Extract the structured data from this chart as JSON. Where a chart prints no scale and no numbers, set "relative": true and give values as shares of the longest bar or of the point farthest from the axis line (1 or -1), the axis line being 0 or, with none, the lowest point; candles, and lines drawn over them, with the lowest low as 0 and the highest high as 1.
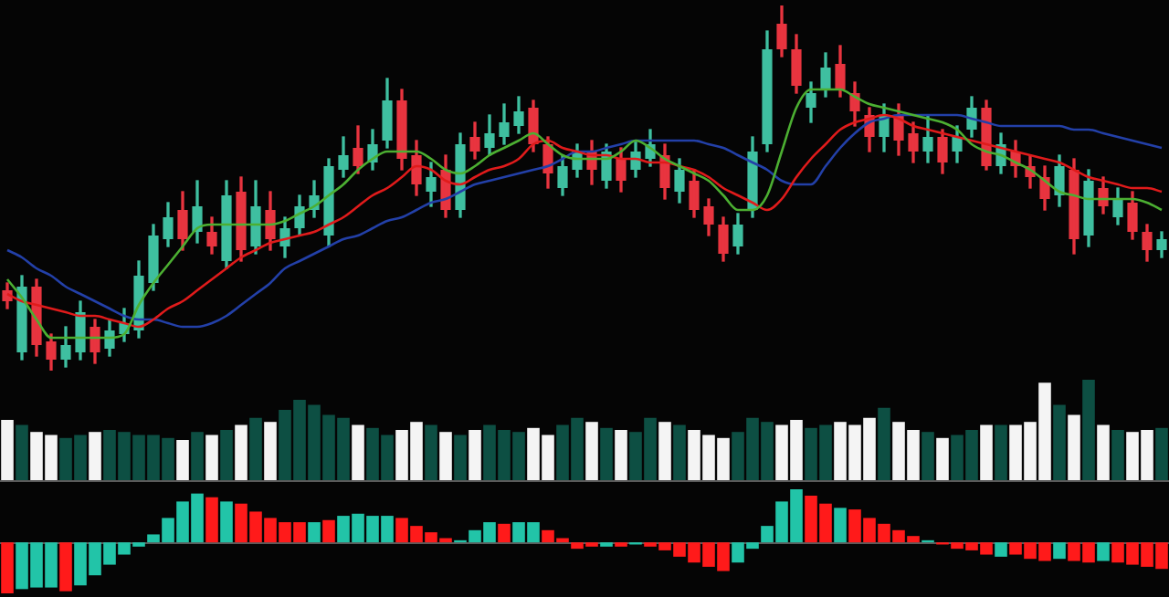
{
  "chart_data": [
    {
      "type": "candlestick",
      "relative": true,
      "marker": "none",
      "categories": [
        null,
        null,
        null,
        null,
        null,
        null,
        null,
        null,
        null,
        null,
        null,
        null,
        null,
        null,
        null,
        null,
        null,
        null,
        null,
        null,
        null,
        null,
        null,
        null,
        null,
        null,
        null,
        null,
        null,
        null,
        null,
        null,
        null,
        null,
        null,
        null,
        null,
        null,
        null,
        null,
        null,
        null,
        null,
        null,
        null,
        null,
        null,
        null,
        null,
        null,
        null,
        null,
        null,
        null,
        null,
        null,
        null,
        null,
        null,
        null,
        null,
        null,
        null,
        null,
        null,
        null,
        null,
        null,
        null,
        null,
        null,
        null,
        null,
        null,
        null,
        null,
        null,
        null,
        null,
        null
      ],
      "ohlc": [
        [
          0.22,
          0.24,
          0.17,
          0.19
        ],
        [
          0.05,
          0.26,
          0.03,
          0.23
        ],
        [
          0.23,
          0.25,
          0.04,
          0.07
        ],
        [
          0.08,
          0.1,
          0.0,
          0.03
        ],
        [
          0.03,
          0.12,
          0.01,
          0.07
        ],
        [
          0.05,
          0.19,
          0.03,
          0.16
        ],
        [
          0.12,
          0.14,
          0.02,
          0.05
        ],
        [
          0.06,
          0.14,
          0.04,
          0.11
        ],
        [
          0.1,
          0.17,
          0.08,
          0.13
        ],
        [
          0.11,
          0.3,
          0.09,
          0.26
        ],
        [
          0.24,
          0.4,
          0.22,
          0.37
        ],
        [
          0.36,
          0.46,
          0.34,
          0.42
        ],
        [
          0.44,
          0.49,
          0.33,
          0.36
        ],
        [
          0.38,
          0.52,
          0.35,
          0.45
        ],
        [
          0.38,
          0.42,
          0.32,
          0.34
        ],
        [
          0.3,
          0.52,
          0.28,
          0.48
        ],
        [
          0.49,
          0.53,
          0.3,
          0.33
        ],
        [
          0.34,
          0.52,
          0.32,
          0.45
        ],
        [
          0.44,
          0.49,
          0.33,
          0.36
        ],
        [
          0.34,
          0.42,
          0.31,
          0.39
        ],
        [
          0.39,
          0.48,
          0.37,
          0.45
        ],
        [
          0.44,
          0.52,
          0.42,
          0.48
        ],
        [
          0.37,
          0.58,
          0.34,
          0.56
        ],
        [
          0.55,
          0.64,
          0.53,
          0.59
        ],
        [
          0.61,
          0.67,
          0.54,
          0.56
        ],
        [
          0.57,
          0.66,
          0.55,
          0.62
        ],
        [
          0.63,
          0.8,
          0.61,
          0.74
        ],
        [
          0.74,
          0.77,
          0.55,
          0.58
        ],
        [
          0.59,
          0.63,
          0.48,
          0.51
        ],
        [
          0.49,
          0.57,
          0.45,
          0.53
        ],
        [
          0.55,
          0.59,
          0.42,
          0.44
        ],
        [
          0.44,
          0.65,
          0.42,
          0.62
        ],
        [
          0.64,
          0.68,
          0.58,
          0.6
        ],
        [
          0.61,
          0.7,
          0.59,
          0.65
        ],
        [
          0.64,
          0.73,
          0.62,
          0.68
        ],
        [
          0.67,
          0.75,
          0.65,
          0.71
        ],
        [
          0.72,
          0.74,
          0.6,
          0.62
        ],
        [
          0.62,
          0.64,
          0.5,
          0.54
        ],
        [
          0.5,
          0.59,
          0.48,
          0.56
        ],
        [
          0.55,
          0.62,
          0.53,
          0.6
        ],
        [
          0.6,
          0.63,
          0.51,
          0.55
        ],
        [
          0.52,
          0.62,
          0.5,
          0.6
        ],
        [
          0.58,
          0.61,
          0.49,
          0.52
        ],
        [
          0.55,
          0.63,
          0.53,
          0.6
        ],
        [
          0.58,
          0.66,
          0.56,
          0.62
        ],
        [
          0.59,
          0.62,
          0.47,
          0.5
        ],
        [
          0.49,
          0.58,
          0.46,
          0.55
        ],
        [
          0.52,
          0.55,
          0.42,
          0.44
        ],
        [
          0.45,
          0.47,
          0.37,
          0.4
        ],
        [
          0.4,
          0.42,
          0.3,
          0.32
        ],
        [
          0.34,
          0.43,
          0.32,
          0.4
        ],
        [
          0.44,
          0.64,
          0.42,
          0.6
        ],
        [
          0.62,
          0.93,
          0.6,
          0.88
        ],
        [
          0.95,
          1.0,
          0.86,
          0.88
        ],
        [
          0.88,
          0.92,
          0.76,
          0.78
        ],
        [
          0.72,
          0.79,
          0.68,
          0.76
        ],
        [
          0.77,
          0.87,
          0.75,
          0.83
        ],
        [
          0.84,
          0.89,
          0.75,
          0.77
        ],
        [
          0.76,
          0.79,
          0.67,
          0.71
        ],
        [
          0.7,
          0.72,
          0.6,
          0.64
        ],
        [
          0.64,
          0.73,
          0.6,
          0.7
        ],
        [
          0.7,
          0.73,
          0.59,
          0.63
        ],
        [
          0.65,
          0.68,
          0.57,
          0.6
        ],
        [
          0.6,
          0.7,
          0.57,
          0.64
        ],
        [
          0.64,
          0.66,
          0.54,
          0.57
        ],
        [
          0.6,
          0.67,
          0.57,
          0.64
        ],
        [
          0.66,
          0.75,
          0.64,
          0.72
        ],
        [
          0.72,
          0.74,
          0.55,
          0.56
        ],
        [
          0.56,
          0.65,
          0.54,
          0.62
        ],
        [
          0.6,
          0.63,
          0.53,
          0.56
        ],
        [
          0.56,
          0.59,
          0.5,
          0.53
        ],
        [
          0.53,
          0.56,
          0.44,
          0.47
        ],
        [
          0.48,
          0.59,
          0.45,
          0.56
        ],
        [
          0.55,
          0.58,
          0.32,
          0.36
        ],
        [
          0.37,
          0.55,
          0.34,
          0.52
        ],
        [
          0.5,
          0.53,
          0.43,
          0.45
        ],
        [
          0.42,
          0.5,
          0.4,
          0.47
        ],
        [
          0.46,
          0.49,
          0.36,
          0.38
        ],
        [
          0.38,
          0.4,
          0.3,
          0.33
        ],
        [
          0.33,
          0.38,
          0.31,
          0.36
        ]
      ],
      "colors": [
        "#e8343f",
        "#3fbfa0",
        "#e8343f",
        "#e8343f",
        "#3fbfa0",
        "#3fbfa0",
        "#e8343f",
        "#3fbfa0",
        "#3fbfa0",
        "#3fbfa0",
        "#3fbfa0",
        "#3fbfa0",
        "#e8343f",
        "#3fbfa0",
        "#e8343f",
        "#3fbfa0",
        "#e8343f",
        "#3fbfa0",
        "#e8343f",
        "#3fbfa0",
        "#3fbfa0",
        "#3fbfa0",
        "#3fbfa0",
        "#3fbfa0",
        "#e8343f",
        "#3fbfa0",
        "#3fbfa0",
        "#e8343f",
        "#e8343f",
        "#3fbfa0",
        "#e8343f",
        "#3fbfa0",
        "#e8343f",
        "#3fbfa0",
        "#3fbfa0",
        "#3fbfa0",
        "#e8343f",
        "#e8343f",
        "#3fbfa0",
        "#3fbfa0",
        "#e8343f",
        "#3fbfa0",
        "#e8343f",
        "#3fbfa0",
        "#3fbfa0",
        "#e8343f",
        "#3fbfa0",
        "#e8343f",
        "#e8343f",
        "#e8343f",
        "#3fbfa0",
        "#3fbfa0",
        "#3fbfa0",
        "#e8343f",
        "#e8343f",
        "#3fbfa0",
        "#3fbfa0",
        "#e8343f",
        "#e8343f",
        "#e8343f",
        "#3fbfa0",
        "#e8343f",
        "#e8343f",
        "#3fbfa0",
        "#e8343f",
        "#3fbfa0",
        "#3fbfa0",
        "#e8343f",
        "#3fbfa0",
        "#e8343f",
        "#e8343f",
        "#e8343f",
        "#3fbfa0",
        "#e8343f",
        "#3fbfa0",
        "#e8343f",
        "#3fbfa0",
        "#e8343f",
        "#e8343f",
        "#3fbfa0"
      ],
      "series": [
        {
          "type": "line",
          "color": "#4caf32",
          "values": [
            0.25,
            0.2,
            0.14,
            0.09,
            0.09,
            0.09,
            0.09,
            0.09,
            0.1,
            0.18,
            0.24,
            0.29,
            0.34,
            0.39,
            0.4,
            0.4,
            0.4,
            0.4,
            0.4,
            0.41,
            0.43,
            0.45,
            0.48,
            0.51,
            0.55,
            0.58,
            0.6,
            0.6,
            0.6,
            0.58,
            0.55,
            0.54,
            0.56,
            0.59,
            0.61,
            0.63,
            0.65,
            0.62,
            0.59,
            0.58,
            0.58,
            0.58,
            0.6,
            0.63,
            0.61,
            0.58,
            0.56,
            0.54,
            0.52,
            0.48,
            0.44,
            0.44,
            0.48,
            0.6,
            0.72,
            0.77,
            0.77,
            0.77,
            0.75,
            0.73,
            0.72,
            0.71,
            0.7,
            0.69,
            0.68,
            0.66,
            0.62,
            0.6,
            0.59,
            0.57,
            0.55,
            0.52,
            0.49,
            0.48,
            0.47,
            0.47,
            0.47,
            0.47,
            0.46,
            0.44
          ]
        },
        {
          "type": "line",
          "color": "#e01b1b",
          "values": [
            0.21,
            0.19,
            0.18,
            0.17,
            0.16,
            0.15,
            0.15,
            0.14,
            0.13,
            0.12,
            0.14,
            0.17,
            0.19,
            0.22,
            0.25,
            0.28,
            0.31,
            0.33,
            0.35,
            0.36,
            0.37,
            0.38,
            0.4,
            0.42,
            0.45,
            0.48,
            0.5,
            0.53,
            0.56,
            0.55,
            0.52,
            0.51,
            0.53,
            0.55,
            0.56,
            0.58,
            0.62,
            0.63,
            0.61,
            0.6,
            0.59,
            0.59,
            0.58,
            0.58,
            0.57,
            0.57,
            0.56,
            0.55,
            0.53,
            0.5,
            0.48,
            0.46,
            0.44,
            0.47,
            0.53,
            0.58,
            0.62,
            0.66,
            0.68,
            0.69,
            0.7,
            0.69,
            0.67,
            0.66,
            0.65,
            0.64,
            0.63,
            0.62,
            0.61,
            0.6,
            0.59,
            0.58,
            0.57,
            0.55,
            0.53,
            0.52,
            0.51,
            0.5,
            0.5,
            0.49
          ]
        },
        {
          "type": "line",
          "color": "#2340a8",
          "values": [
            0.33,
            0.31,
            0.28,
            0.26,
            0.23,
            0.21,
            0.19,
            0.17,
            0.15,
            0.14,
            0.14,
            0.13,
            0.12,
            0.12,
            0.13,
            0.15,
            0.18,
            0.21,
            0.24,
            0.28,
            0.3,
            0.32,
            0.34,
            0.36,
            0.37,
            0.39,
            0.41,
            0.42,
            0.44,
            0.46,
            0.47,
            0.49,
            0.51,
            0.52,
            0.53,
            0.54,
            0.55,
            0.56,
            0.58,
            0.6,
            0.6,
            0.61,
            0.62,
            0.63,
            0.63,
            0.63,
            0.63,
            0.63,
            0.62,
            0.61,
            0.59,
            0.57,
            0.55,
            0.52,
            0.51,
            0.51,
            0.56,
            0.61,
            0.65,
            0.68,
            0.69,
            0.7,
            0.7,
            0.7,
            0.7,
            0.7,
            0.69,
            0.68,
            0.67,
            0.67,
            0.67,
            0.67,
            0.67,
            0.66,
            0.66,
            0.65,
            0.64,
            0.63,
            0.62,
            0.61
          ]
        }
      ]
    },
    {
      "type": "bar",
      "relative": true,
      "categories": [
        null,
        null,
        null,
        null,
        null,
        null,
        null,
        null,
        null,
        null,
        null,
        null,
        null,
        null,
        null,
        null,
        null,
        null,
        null,
        null,
        null,
        null,
        null,
        null,
        null,
        null,
        null,
        null,
        null,
        null,
        null,
        null,
        null,
        null,
        null,
        null,
        null,
        null,
        null,
        null,
        null,
        null,
        null,
        null,
        null,
        null,
        null,
        null,
        null,
        null,
        null,
        null,
        null,
        null,
        null,
        null,
        null,
        null,
        null,
        null,
        null,
        null,
        null,
        null,
        null,
        null,
        null,
        null,
        null,
        null,
        null,
        null,
        null,
        null,
        null,
        null,
        null,
        null,
        null,
        null
      ],
      "values": [
        0.6,
        0.55,
        0.48,
        0.45,
        0.42,
        0.45,
        0.48,
        0.5,
        0.48,
        0.45,
        0.45,
        0.42,
        0.4,
        0.48,
        0.45,
        0.5,
        0.55,
        0.62,
        0.58,
        0.7,
        0.8,
        0.75,
        0.65,
        0.62,
        0.55,
        0.52,
        0.45,
        0.5,
        0.58,
        0.55,
        0.48,
        0.45,
        0.5,
        0.55,
        0.5,
        0.48,
        0.52,
        0.45,
        0.55,
        0.62,
        0.58,
        0.52,
        0.5,
        0.48,
        0.62,
        0.58,
        0.55,
        0.5,
        0.45,
        0.42,
        0.48,
        0.62,
        0.58,
        0.55,
        0.6,
        0.52,
        0.55,
        0.58,
        0.55,
        0.62,
        0.72,
        0.58,
        0.5,
        0.48,
        0.42,
        0.45,
        0.5,
        0.55,
        0.55,
        0.55,
        0.58,
        0.97,
        0.75,
        0.65,
        1.0,
        0.55,
        0.5,
        0.48,
        0.5,
        0.52
      ],
      "colors": [
        "#f4f4f4",
        "#0d4f43",
        "#f4f4f4",
        "#f4f4f4",
        "#0d4f43",
        "#0d4f43",
        "#f4f4f4",
        "#0d4f43",
        "#0d4f43",
        "#0d4f43",
        "#0d4f43",
        "#0d4f43",
        "#f4f4f4",
        "#0d4f43",
        "#f4f4f4",
        "#0d4f43",
        "#f4f4f4",
        "#0d4f43",
        "#f4f4f4",
        "#0d4f43",
        "#0d4f43",
        "#0d4f43",
        "#0d4f43",
        "#0d4f43",
        "#f4f4f4",
        "#0d4f43",
        "#0d4f43",
        "#f4f4f4",
        "#f4f4f4",
        "#0d4f43",
        "#f4f4f4",
        "#0d4f43",
        "#f4f4f4",
        "#0d4f43",
        "#0d4f43",
        "#0d4f43",
        "#f4f4f4",
        "#f4f4f4",
        "#0d4f43",
        "#0d4f43",
        "#f4f4f4",
        "#0d4f43",
        "#f4f4f4",
        "#0d4f43",
        "#0d4f43",
        "#f4f4f4",
        "#0d4f43",
        "#f4f4f4",
        "#f4f4f4",
        "#f4f4f4",
        "#0d4f43",
        "#0d4f43",
        "#0d4f43",
        "#f4f4f4",
        "#f4f4f4",
        "#0d4f43",
        "#0d4f43",
        "#f4f4f4",
        "#f4f4f4",
        "#f4f4f4",
        "#0d4f43",
        "#f4f4f4",
        "#f4f4f4",
        "#0d4f43",
        "#f4f4f4",
        "#0d4f43",
        "#0d4f43",
        "#f4f4f4",
        "#0d4f43",
        "#f4f4f4",
        "#f4f4f4",
        "#f4f4f4",
        "#0d4f43",
        "#f4f4f4",
        "#0d4f43",
        "#f4f4f4",
        "#0d4f43",
        "#f4f4f4",
        "#f4f4f4",
        "#0d4f43"
      ]
    },
    {
      "type": "bar",
      "relative": true,
      "categories": [
        null,
        null,
        null,
        null,
        null,
        null,
        null,
        null,
        null,
        null,
        null,
        null,
        null,
        null,
        null,
        null,
        null,
        null,
        null,
        null,
        null,
        null,
        null,
        null,
        null,
        null,
        null,
        null,
        null,
        null,
        null,
        null,
        null,
        null,
        null,
        null,
        null,
        null,
        null,
        null,
        null,
        null,
        null,
        null,
        null,
        null,
        null,
        null,
        null,
        null,
        null,
        null,
        null,
        null,
        null,
        null,
        null,
        null,
        null,
        null,
        null,
        null,
        null,
        null,
        null,
        null,
        null,
        null,
        null,
        null,
        null,
        null,
        null,
        null,
        null,
        null,
        null,
        null,
        null,
        null
      ],
      "values": [
        -0.96,
        -0.88,
        -0.85,
        -0.85,
        -0.92,
        -0.81,
        -0.62,
        -0.42,
        -0.23,
        -0.08,
        0.15,
        0.46,
        0.77,
        0.92,
        0.85,
        0.77,
        0.73,
        0.58,
        0.46,
        0.38,
        0.38,
        0.38,
        0.42,
        0.5,
        0.54,
        0.5,
        0.5,
        0.46,
        0.31,
        0.19,
        0.08,
        0.04,
        0.23,
        0.38,
        0.35,
        0.38,
        0.38,
        0.23,
        0.08,
        -0.12,
        -0.08,
        -0.08,
        -0.08,
        -0.04,
        -0.08,
        -0.15,
        -0.27,
        -0.38,
        -0.46,
        -0.54,
        -0.38,
        -0.12,
        0.31,
        0.77,
        1.0,
        0.88,
        0.73,
        0.65,
        0.62,
        0.46,
        0.35,
        0.23,
        0.12,
        0.04,
        -0.04,
        -0.12,
        -0.15,
        -0.23,
        -0.27,
        -0.23,
        -0.31,
        -0.35,
        -0.31,
        -0.35,
        -0.38,
        -0.35,
        -0.38,
        -0.42,
        -0.46,
        -0.5
      ],
      "colors": [
        "#ff1a1a",
        "#22c4a8",
        "#22c4a8",
        "#22c4a8",
        "#ff1a1a",
        "#22c4a8",
        "#22c4a8",
        "#22c4a8",
        "#22c4a8",
        "#22c4a8",
        "#22c4a8",
        "#22c4a8",
        "#22c4a8",
        "#22c4a8",
        "#ff1a1a",
        "#22c4a8",
        "#ff1a1a",
        "#ff1a1a",
        "#ff1a1a",
        "#ff1a1a",
        "#ff1a1a",
        "#22c4a8",
        "#ff1a1a",
        "#22c4a8",
        "#22c4a8",
        "#22c4a8",
        "#22c4a8",
        "#ff1a1a",
        "#ff1a1a",
        "#ff1a1a",
        "#ff1a1a",
        "#22c4a8",
        "#22c4a8",
        "#22c4a8",
        "#ff1a1a",
        "#22c4a8",
        "#22c4a8",
        "#ff1a1a",
        "#ff1a1a",
        "#ff1a1a",
        "#ff1a1a",
        "#22c4a8",
        "#ff1a1a",
        "#22c4a8",
        "#ff1a1a",
        "#ff1a1a",
        "#ff1a1a",
        "#ff1a1a",
        "#ff1a1a",
        "#ff1a1a",
        "#22c4a8",
        "#22c4a8",
        "#22c4a8",
        "#22c4a8",
        "#22c4a8",
        "#ff1a1a",
        "#ff1a1a",
        "#22c4a8",
        "#ff1a1a",
        "#ff1a1a",
        "#ff1a1a",
        "#ff1a1a",
        "#ff1a1a",
        "#22c4a8",
        "#ff1a1a",
        "#ff1a1a",
        "#ff1a1a",
        "#ff1a1a",
        "#22c4a8",
        "#ff1a1a",
        "#ff1a1a",
        "#ff1a1a",
        "#22c4a8",
        "#ff1a1a",
        "#ff1a1a",
        "#22c4a8",
        "#ff1a1a",
        "#ff1a1a",
        "#ff1a1a",
        "#ff1a1a"
      ]
    }
  ]
}
